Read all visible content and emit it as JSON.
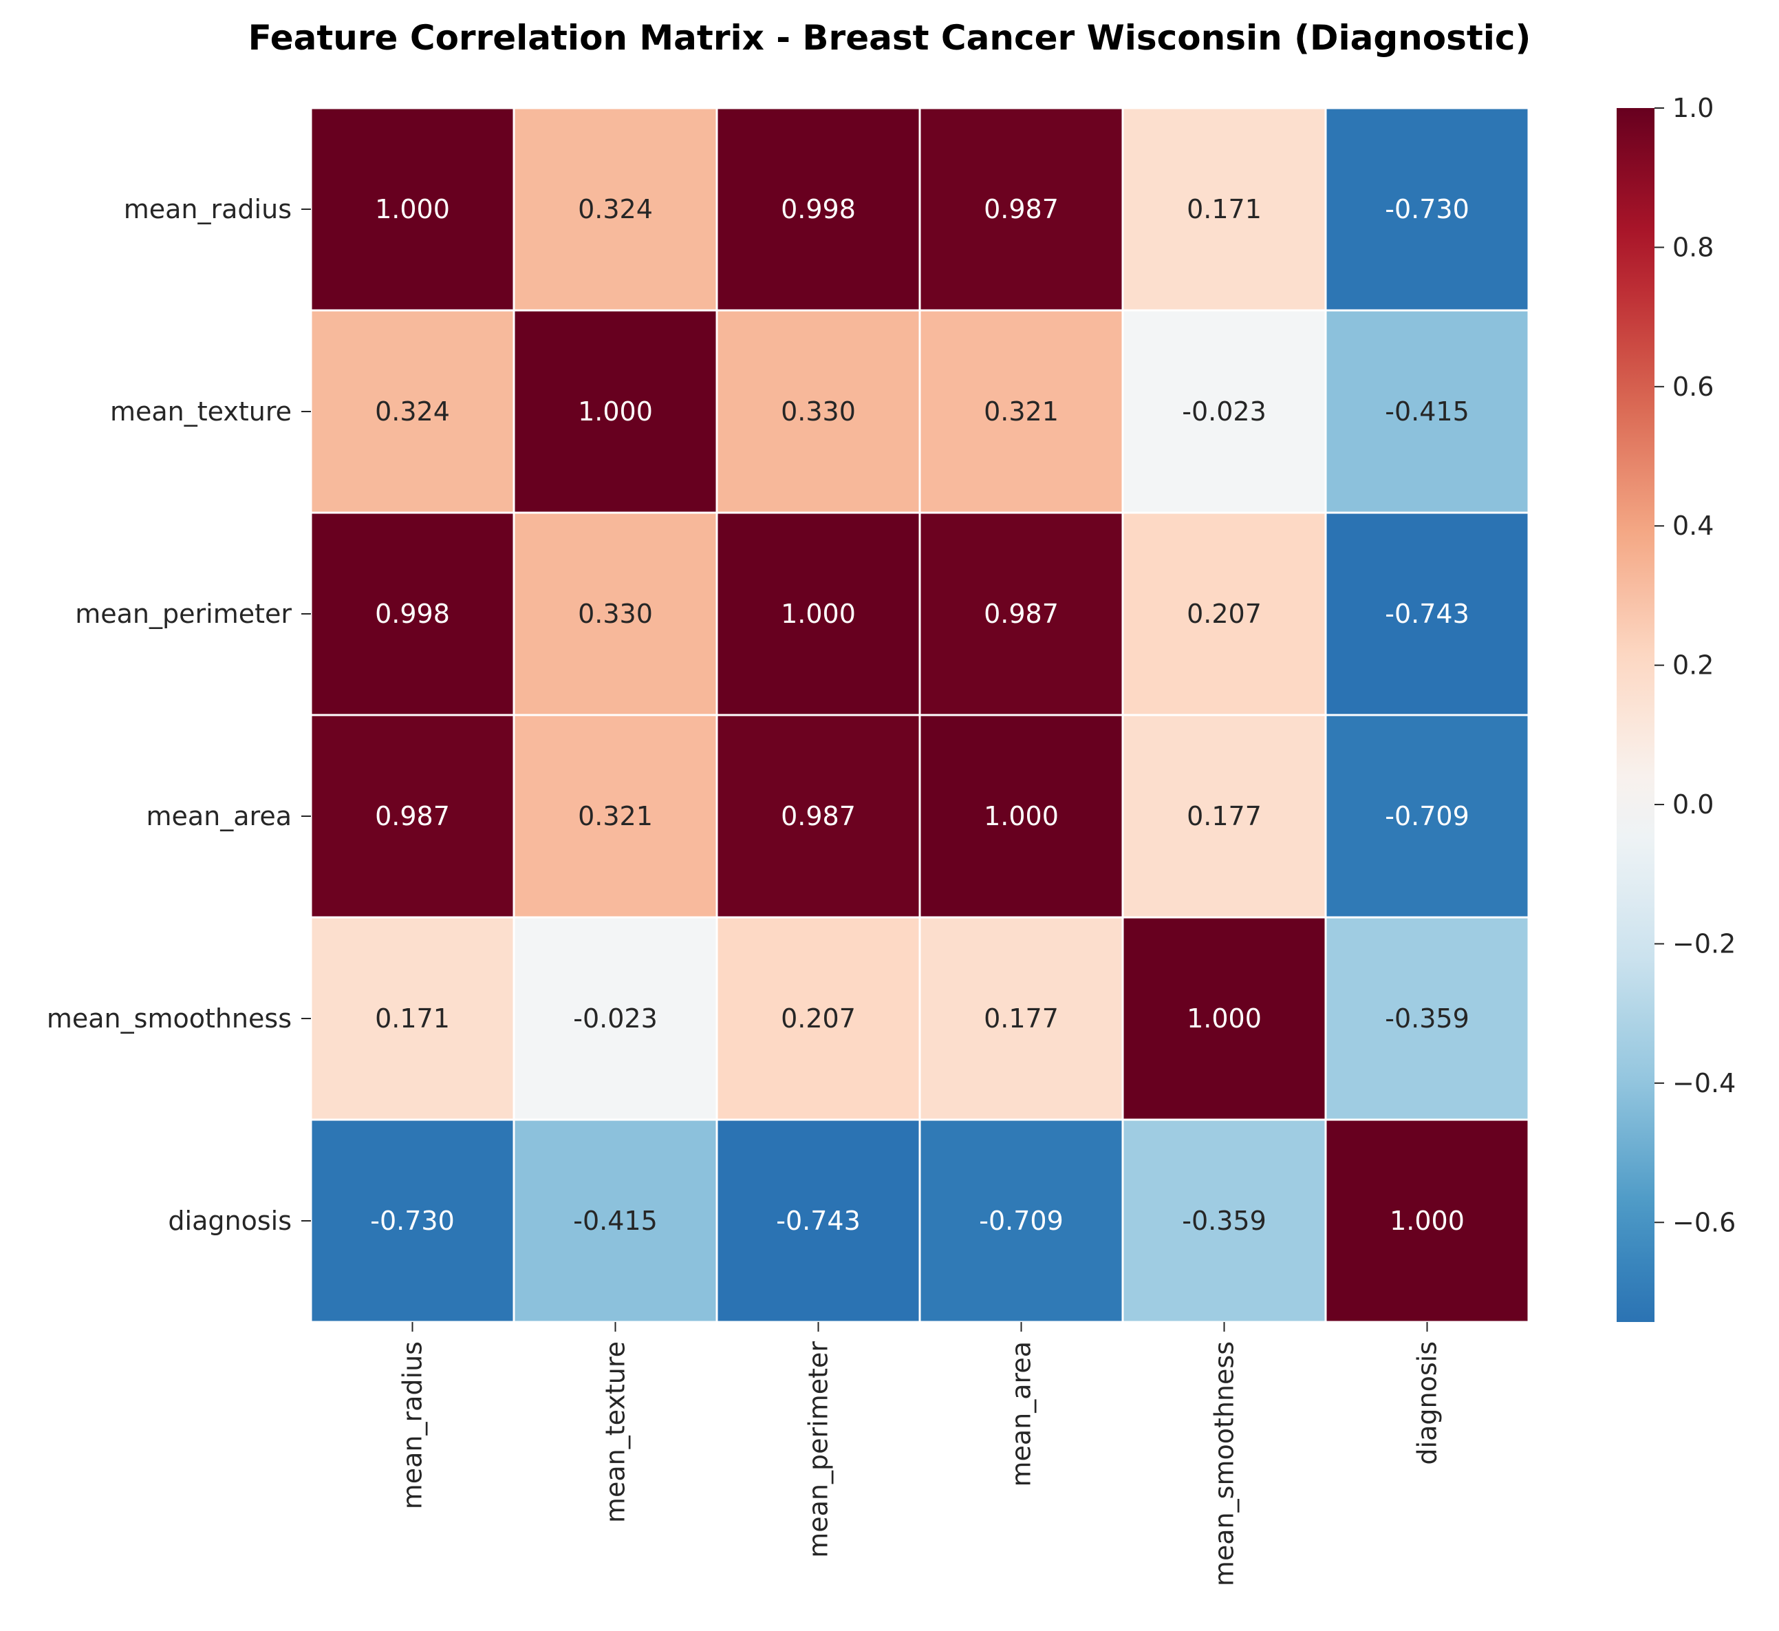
{
  "chart_data": {
    "type": "heatmap",
    "title": "Feature Correlation Matrix - Breast Cancer Wisconsin (Diagnostic)",
    "xlabel": "",
    "ylabel": "",
    "row_labels": [
      "mean_radius",
      "mean_texture",
      "mean_perimeter",
      "mean_area",
      "mean_smoothness",
      "diagnosis"
    ],
    "col_labels": [
      "mean_radius",
      "mean_texture",
      "mean_perimeter",
      "mean_area",
      "mean_smoothness",
      "diagnosis"
    ],
    "values": [
      [
        1.0,
        0.324,
        0.998,
        0.987,
        0.171,
        -0.73
      ],
      [
        0.324,
        1.0,
        0.33,
        0.321,
        -0.023,
        -0.415
      ],
      [
        0.998,
        0.33,
        1.0,
        0.987,
        0.207,
        -0.743
      ],
      [
        0.987,
        0.321,
        0.987,
        1.0,
        0.177,
        -0.709
      ],
      [
        0.171,
        -0.023,
        0.207,
        0.177,
        1.0,
        -0.359
      ],
      [
        -0.73,
        -0.415,
        -0.743,
        -0.709,
        -0.359,
        1.0
      ]
    ],
    "value_labels": [
      [
        "1.000",
        "0.324",
        "0.998",
        "0.987",
        "0.171",
        "-0.730"
      ],
      [
        "0.324",
        "1.000",
        "0.330",
        "0.321",
        "-0.023",
        "-0.415"
      ],
      [
        "0.998",
        "0.330",
        "1.000",
        "0.987",
        "0.207",
        "-0.743"
      ],
      [
        "0.987",
        "0.321",
        "0.987",
        "1.000",
        "0.177",
        "-0.709"
      ],
      [
        "0.171",
        "-0.023",
        "0.207",
        "0.177",
        "1.000",
        "-0.359"
      ],
      [
        "-0.730",
        "-0.415",
        "-0.743",
        "-0.709",
        "-0.359",
        "1.000"
      ]
    ],
    "colormap": "RdBu_r",
    "colorbar": {
      "vmin": -0.743,
      "vmax": 1.0,
      "ticks": [
        1.0,
        0.8,
        0.6,
        0.4,
        0.2,
        0.0,
        -0.2,
        -0.4,
        -0.6
      ],
      "tick_labels": [
        "1.0",
        "0.8",
        "0.6",
        "0.4",
        "0.2",
        "0.0",
        "−0.2",
        "−0.4",
        "−0.6"
      ],
      "position": "right"
    },
    "grid": true
  }
}
